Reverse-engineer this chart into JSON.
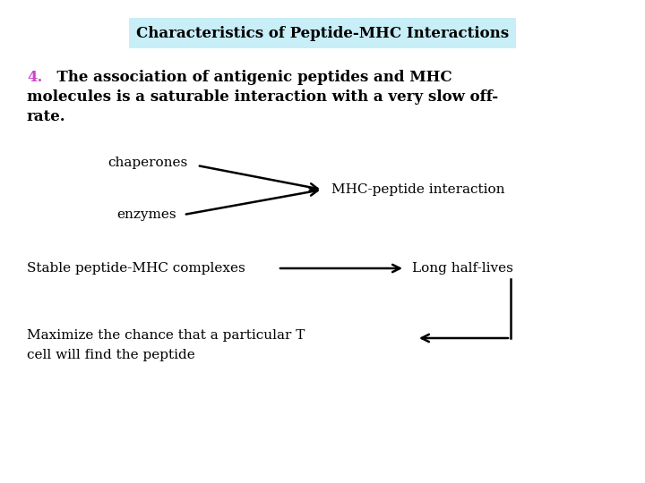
{
  "title": "Characteristics of Peptide-MHC Interactions",
  "title_bg_color": "#c8eef8",
  "title_fontsize": 12,
  "body_fontsize": 12,
  "small_fontsize": 11,
  "number_color": "#cc44cc",
  "text_color": "#000000",
  "bg_color": "#ffffff",
  "label_chaperones": "chaperones",
  "label_enzymes": "enzymes",
  "label_mhc_peptide": "MHC-peptide interaction",
  "label_stable": "Stable peptide-MHC complexes",
  "label_long": "Long half-lives",
  "label_maximize1": "Maximize the chance that a particular T",
  "label_maximize2": "cell will find the peptide"
}
